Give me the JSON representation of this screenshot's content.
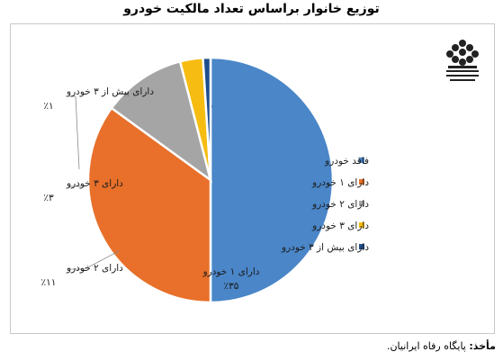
{
  "title": "توزیع خانوار براساس تعداد مالکیت خودرو",
  "source": {
    "label": "مأخذ:",
    "text": "پایگاه رفاه ایرانیان."
  },
  "logo": {
    "name": "majlis-research-center-logo",
    "text": "مرکز پژوهش‌های مجلس شورای اسلامی"
  },
  "chart_data": {
    "type": "pie",
    "series": [
      {
        "name": "فاقد خودرو",
        "value": 50,
        "label": "٪۵۰",
        "color": "#4a86c8"
      },
      {
        "name": "دارای ۱ خودرو",
        "value": 35,
        "label": "٪۳۵",
        "color": "#e8702a"
      },
      {
        "name": "دارای ۲ خودرو",
        "value": 11,
        "label": "٪۱۱",
        "color": "#a5a5a5"
      },
      {
        "name": "دارای ۳ خودرو",
        "value": 3,
        "label": "٪۳",
        "color": "#f6bc12"
      },
      {
        "name": "دارای بیش از ۳ خودرو",
        "value": 1,
        "label": "٪۱",
        "color": "#1f4e8c"
      }
    ],
    "legend_position": "right"
  }
}
